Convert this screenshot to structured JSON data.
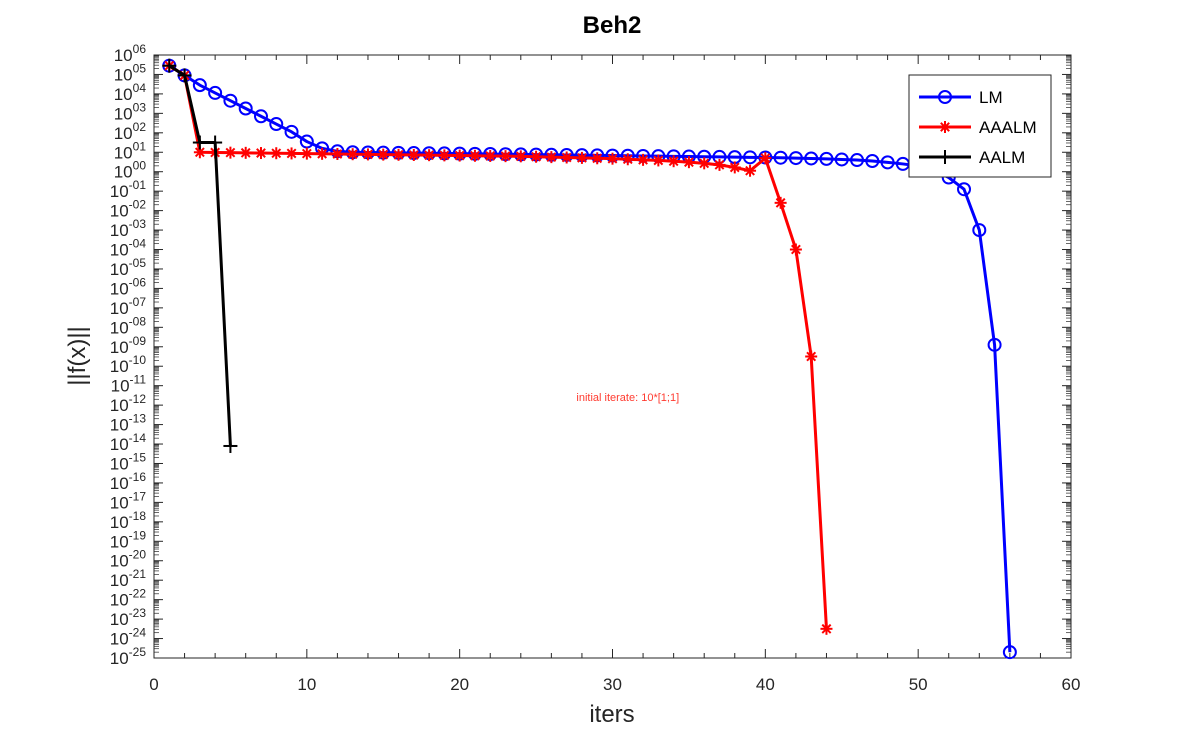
{
  "chart_data": {
    "type": "line",
    "title": "Beh2",
    "xlabel": "iters",
    "ylabel": "||f(x)||",
    "xlim": [
      0,
      60
    ],
    "ylim_exponent": [
      -25,
      6
    ],
    "y_scale": "log",
    "x_ticks": [
      "0",
      "10",
      "20",
      "30",
      "40",
      "50",
      "60"
    ],
    "grid": false,
    "legend_position": "top-right",
    "annotation": {
      "text": "initial iterate: 10*[1;1]",
      "x": 31,
      "y_exponent": -11.8,
      "color": "#ff3b30"
    },
    "series": [
      {
        "name": "LM",
        "color": "#0000ff",
        "marker": "circle",
        "x": [
          1,
          2,
          3,
          4,
          5,
          6,
          7,
          8,
          9,
          10,
          11,
          12,
          13,
          14,
          15,
          16,
          17,
          18,
          19,
          20,
          21,
          22,
          23,
          24,
          25,
          26,
          27,
          28,
          29,
          30,
          31,
          32,
          33,
          34,
          35,
          36,
          37,
          38,
          39,
          40,
          41,
          42,
          43,
          44,
          45,
          46,
          47,
          48,
          49,
          50,
          51,
          52,
          53,
          54,
          55,
          56
        ],
        "y_exponent": [
          5.45,
          4.95,
          4.45,
          4.05,
          3.65,
          3.25,
          2.85,
          2.45,
          2.05,
          1.55,
          1.2,
          1.05,
          1.0,
          0.99,
          0.98,
          0.97,
          0.96,
          0.95,
          0.94,
          0.93,
          0.92,
          0.91,
          0.9,
          0.89,
          0.88,
          0.87,
          0.86,
          0.85,
          0.84,
          0.83,
          0.82,
          0.81,
          0.8,
          0.79,
          0.78,
          0.77,
          0.76,
          0.75,
          0.74,
          0.73,
          0.72,
          0.7,
          0.68,
          0.66,
          0.63,
          0.6,
          0.55,
          0.48,
          0.4,
          0.3,
          0.1,
          -0.3,
          -0.9,
          -3.0,
          -8.9,
          -24.7
        ]
      },
      {
        "name": "AAALM",
        "color": "#ff0000",
        "marker": "asterisk",
        "x": [
          1,
          2,
          3,
          4,
          5,
          6,
          7,
          8,
          9,
          10,
          11,
          12,
          13,
          14,
          15,
          16,
          17,
          18,
          19,
          20,
          21,
          22,
          23,
          24,
          25,
          26,
          27,
          28,
          29,
          30,
          31,
          32,
          33,
          34,
          35,
          36,
          37,
          38,
          39,
          40,
          41,
          42,
          43,
          44
        ],
        "y_exponent": [
          5.45,
          4.95,
          1.0,
          0.99,
          0.98,
          0.97,
          0.96,
          0.95,
          0.94,
          0.93,
          0.92,
          0.91,
          0.9,
          0.89,
          0.88,
          0.87,
          0.86,
          0.85,
          0.84,
          0.83,
          0.82,
          0.81,
          0.8,
          0.79,
          0.77,
          0.75,
          0.73,
          0.71,
          0.69,
          0.67,
          0.64,
          0.61,
          0.58,
          0.54,
          0.49,
          0.43,
          0.35,
          0.22,
          0.05,
          0.7,
          -1.6,
          -4.0,
          -9.5,
          -23.5
        ]
      },
      {
        "name": "AALM",
        "color": "#000000",
        "marker": "plus",
        "x": [
          1,
          2,
          3,
          4,
          5
        ],
        "y_exponent": [
          5.45,
          4.95,
          1.5,
          1.5,
          -14.1
        ]
      }
    ]
  }
}
